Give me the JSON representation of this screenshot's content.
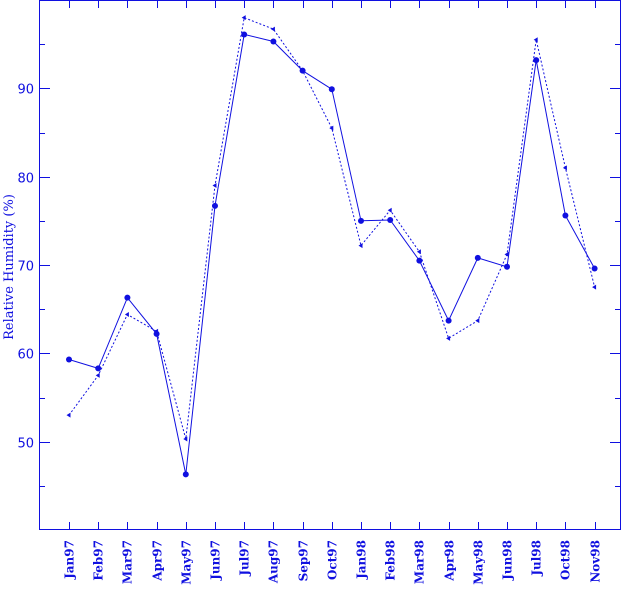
{
  "chart_data": {
    "type": "line",
    "title": "",
    "xlabel": "",
    "ylabel": "Relative Humidity (%)",
    "ylim": [
      40,
      100
    ],
    "yticks_labeled": [
      50,
      60,
      70,
      80,
      90
    ],
    "yticks_minor": [
      45,
      55,
      65,
      75,
      85,
      95
    ],
    "grid": false,
    "legend": "none",
    "color": "#1010e0",
    "categories": [
      "Jan97",
      "Feb97",
      "Mar97",
      "Apr97",
      "May97",
      "Jun97",
      "Jul97",
      "Aug97",
      "Sep97",
      "Oct97",
      "Jan98",
      "Feb98",
      "Mar98",
      "Apr98",
      "May98",
      "Jun98",
      "Jul98",
      "Oct98",
      "Nov98"
    ],
    "series": [
      {
        "style": "solid",
        "marker": "circle",
        "values": [
          59.3,
          58.3,
          66.3,
          62.2,
          46.3,
          76.7,
          96.1,
          95.3,
          92.0,
          89.9,
          75.0,
          75.1,
          70.5,
          63.7,
          70.8,
          69.8,
          93.2,
          75.6,
          69.6
        ]
      },
      {
        "style": "dotted",
        "marker": "triangle-left",
        "values": [
          53.0,
          57.5,
          64.4,
          62.5,
          50.3,
          79.0,
          98.0,
          96.7,
          92.0,
          85.5,
          72.2,
          76.2,
          71.5,
          61.7,
          63.7,
          71.2,
          95.5,
          81.0,
          67.5
        ]
      }
    ]
  }
}
